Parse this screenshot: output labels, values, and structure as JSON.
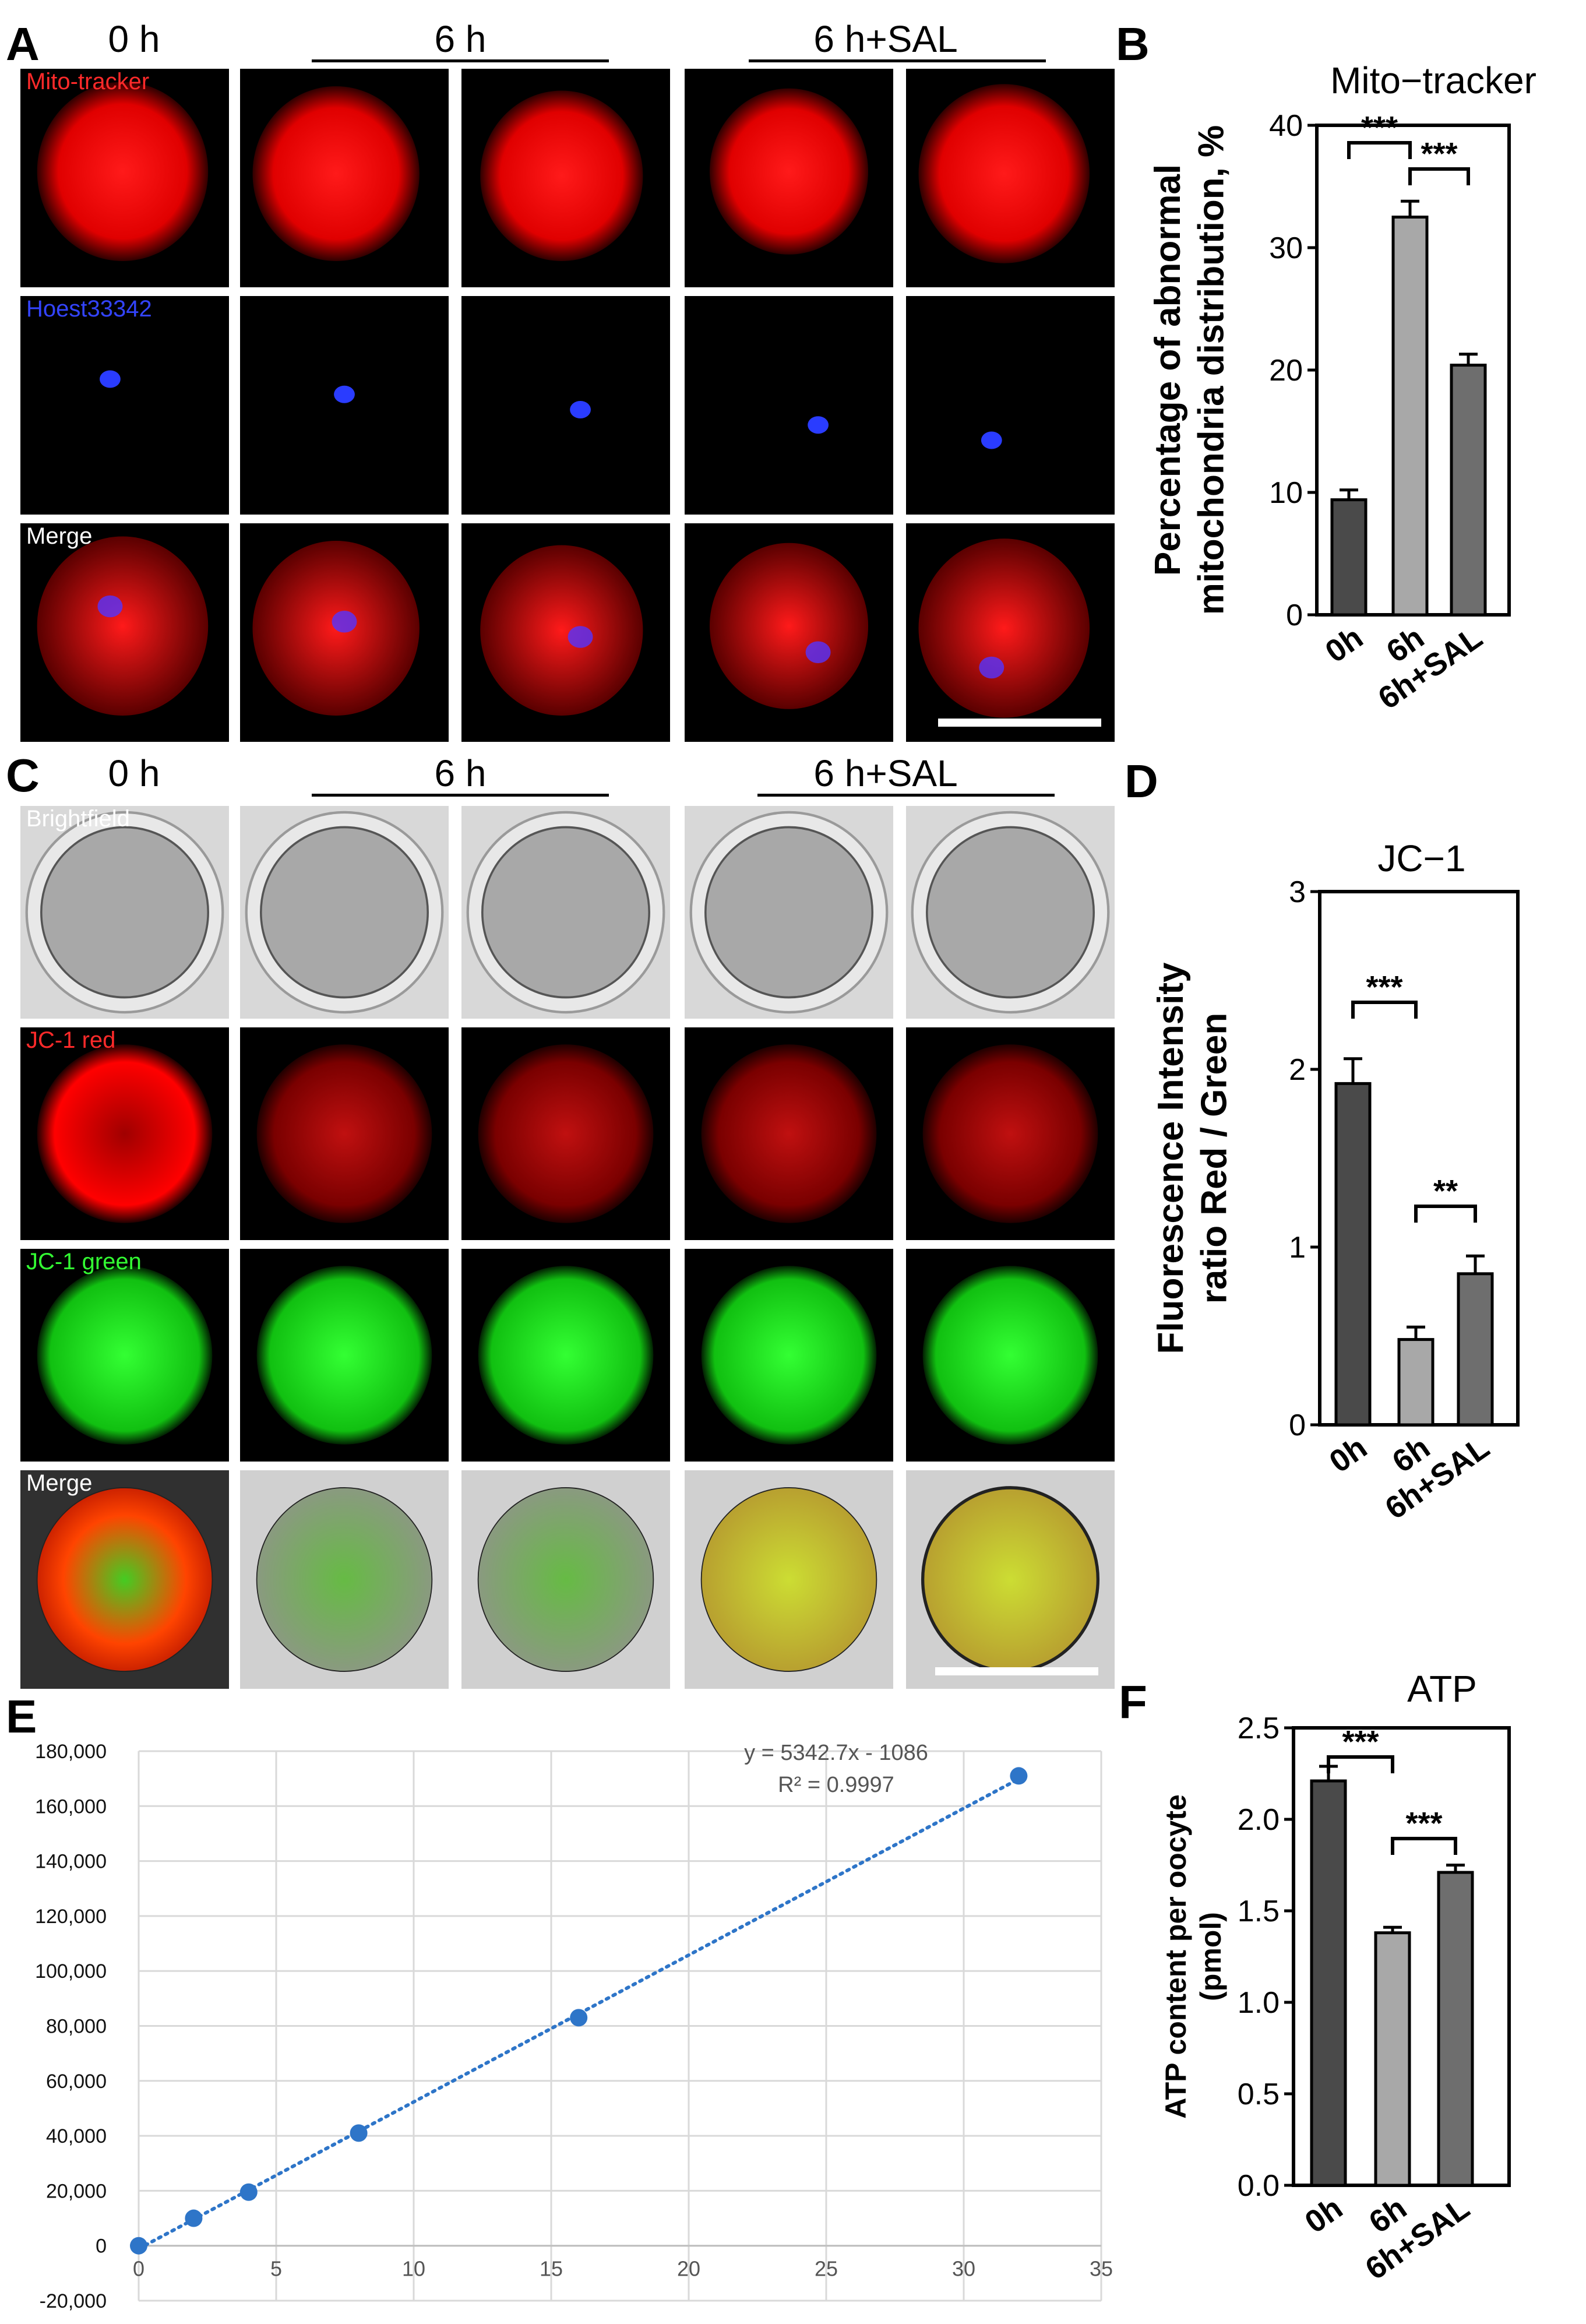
{
  "panels": {
    "A": {
      "letter": "A",
      "time_labels": [
        "0 h",
        "6 h",
        "6 h+SAL"
      ],
      "row_labels": [
        "Mito-tracker",
        "Hoest33342",
        "Merge"
      ],
      "label_colors": [
        "#ff2a2a",
        "#3344ff",
        "#ffffff"
      ]
    },
    "C": {
      "letter": "C",
      "time_labels": [
        "0 h",
        "6 h",
        "6 h+SAL"
      ],
      "row_labels": [
        "Brightfield",
        "JC-1 red",
        "JC-1 green",
        "Merge"
      ],
      "label_colors": [
        "#ffffff",
        "#ff2a2a",
        "#33ff33",
        "#ffffff"
      ]
    }
  },
  "chart_data": [
    {
      "panel": "B",
      "type": "bar",
      "title": "Mito−tracker",
      "ylabel_line1": "Percentage of abnormal",
      "ylabel_line2": "mitochondria distribution, %",
      "categories": [
        "0h",
        "6h",
        "6h+SAL"
      ],
      "values": [
        9.4,
        32.5,
        20.4
      ],
      "errors": [
        0.8,
        1.3,
        0.9
      ],
      "colors": [
        "#4a4a4a",
        "#a8a8a8",
        "#6e6e6e"
      ],
      "ylim": [
        0,
        40
      ],
      "yticks": [
        "0",
        "10",
        "20",
        "30",
        "40"
      ],
      "significance": [
        {
          "from": 0,
          "to": 1,
          "label": "***"
        },
        {
          "from": 1,
          "to": 2,
          "label": "***"
        }
      ]
    },
    {
      "panel": "D",
      "type": "bar",
      "title": "JC−1",
      "ylabel_line1": "Fluorescence Intensity",
      "ylabel_line2": "ratio Red / Green",
      "categories": [
        "0h",
        "6h",
        "6h+SAL"
      ],
      "values": [
        1.92,
        0.48,
        0.85
      ],
      "errors": [
        0.14,
        0.07,
        0.1
      ],
      "colors": [
        "#4a4a4a",
        "#a8a8a8",
        "#6e6e6e"
      ],
      "ylim": [
        0,
        3
      ],
      "yticks": [
        "0",
        "1",
        "2",
        "3"
      ],
      "significance": [
        {
          "from": 0,
          "to": 1,
          "label": "***"
        },
        {
          "from": 1,
          "to": 2,
          "label": "**"
        }
      ]
    },
    {
      "panel": "E",
      "type": "scatter",
      "x": [
        0,
        2,
        4,
        8,
        16,
        32
      ],
      "y": [
        0,
        10000,
        19500,
        41000,
        83000,
        171000
      ],
      "xlim": [
        0,
        35
      ],
      "ylim": [
        -20000,
        180000
      ],
      "xticks": [
        "0",
        "5",
        "10",
        "15",
        "20",
        "25",
        "30",
        "35"
      ],
      "yticks": [
        "-20,000",
        "0",
        "20,000",
        "40,000",
        "60,000",
        "80,000",
        "100,000",
        "120,000",
        "140,000",
        "160,000",
        "180,000"
      ],
      "trendline": {
        "slope": 5342.7,
        "intercept": -1086
      },
      "equation": "y = 5342.7x - 1086",
      "r2": "R² = 0.9997",
      "grid": true,
      "point_color": "#2e75c8"
    },
    {
      "panel": "F",
      "type": "bar",
      "title": "ATP",
      "ylabel_line1": "ATP content per oocyte",
      "ylabel_line2": "(pmol)",
      "categories": [
        "0h",
        "6h",
        "6h+SAL"
      ],
      "values": [
        2.21,
        1.38,
        1.71
      ],
      "errors": [
        0.08,
        0.03,
        0.04
      ],
      "colors": [
        "#4a4a4a",
        "#a8a8a8",
        "#6e6e6e"
      ],
      "ylim": [
        0,
        2.5
      ],
      "yticks": [
        "0.0",
        "0.5",
        "1.0",
        "1.5",
        "2.0",
        "2.5"
      ],
      "significance": [
        {
          "from": 0,
          "to": 1,
          "label": "***"
        },
        {
          "from": 1,
          "to": 2,
          "label": "***"
        }
      ]
    }
  ]
}
